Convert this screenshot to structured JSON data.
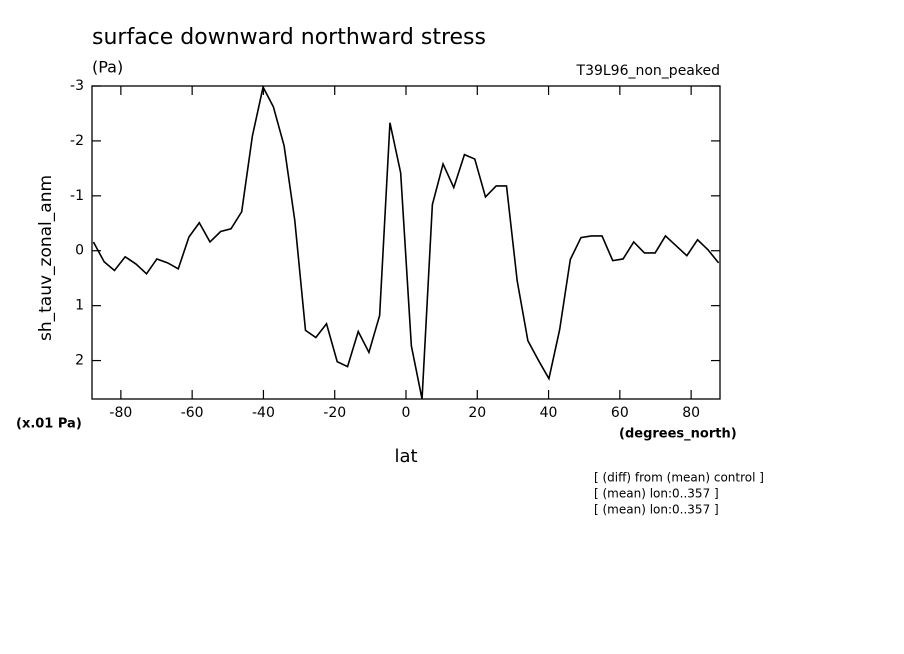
{
  "chart_data": {
    "type": "line",
    "title": "surface downward northward stress",
    "units": "(Pa)",
    "dataset": "T39L96_non_peaked",
    "y_label": "sh_tauv_zonal_anm",
    "y_scale_note": "(x.01 Pa)",
    "x_label": "lat",
    "x_units": "(degrees_north)",
    "annotations": [
      "[ (diff) from (mean) control ]",
      "[ (mean) lon:0..357 ]",
      "[ (mean) lon:0..357 ]"
    ],
    "x": [
      -87.7,
      -84.7,
      -81.8,
      -78.8,
      -75.8,
      -72.8,
      -69.9,
      -66.9,
      -63.9,
      -60.9,
      -58.0,
      -55.0,
      -52.0,
      -49.1,
      -46.1,
      -43.1,
      -40.1,
      -37.2,
      -34.2,
      -31.2,
      -28.2,
      -25.3,
      -22.3,
      -19.3,
      -16.4,
      -13.4,
      -10.4,
      -7.4,
      -4.5,
      -1.5,
      1.5,
      4.5,
      7.4,
      10.4,
      13.4,
      16.4,
      19.3,
      22.3,
      25.3,
      28.2,
      31.2,
      34.2,
      37.2,
      40.1,
      43.1,
      46.1,
      49.1,
      52.0,
      55.0,
      58.0,
      60.9,
      63.9,
      66.9,
      69.9,
      72.8,
      75.8,
      78.8,
      81.8,
      84.7,
      87.7
    ],
    "series": [
      {
        "color": "#000000",
        "values": [
          -0.16,
          0.2,
          0.36,
          0.11,
          0.24,
          0.42,
          0.15,
          0.22,
          0.33,
          -0.25,
          -0.51,
          -0.16,
          -0.35,
          -0.4,
          -0.71,
          -2.09,
          -2.98,
          -2.62,
          -1.91,
          -0.55,
          1.45,
          1.58,
          1.33,
          2.02,
          2.11,
          1.47,
          1.85,
          1.18,
          -2.33,
          -1.42,
          1.73,
          2.7,
          -0.84,
          -1.58,
          -1.15,
          -1.75,
          -1.67,
          -0.98,
          -1.18,
          -1.18,
          0.55,
          1.64,
          2.0,
          2.33,
          1.44,
          0.16,
          -0.24,
          -0.27,
          -0.27,
          0.18,
          0.15,
          -0.16,
          0.04,
          0.04,
          -0.27,
          -0.09,
          0.09,
          -0.2,
          -0.02,
          0.22
        ]
      }
    ],
    "xlim": [
      -88.1,
      88.1
    ],
    "xticks": [
      -80,
      -60,
      -40,
      -20,
      0,
      20,
      40,
      60,
      80
    ],
    "ylim": [
      2.7,
      -3
    ],
    "yticks": [
      -3,
      -2,
      -1,
      0,
      1,
      2
    ]
  }
}
